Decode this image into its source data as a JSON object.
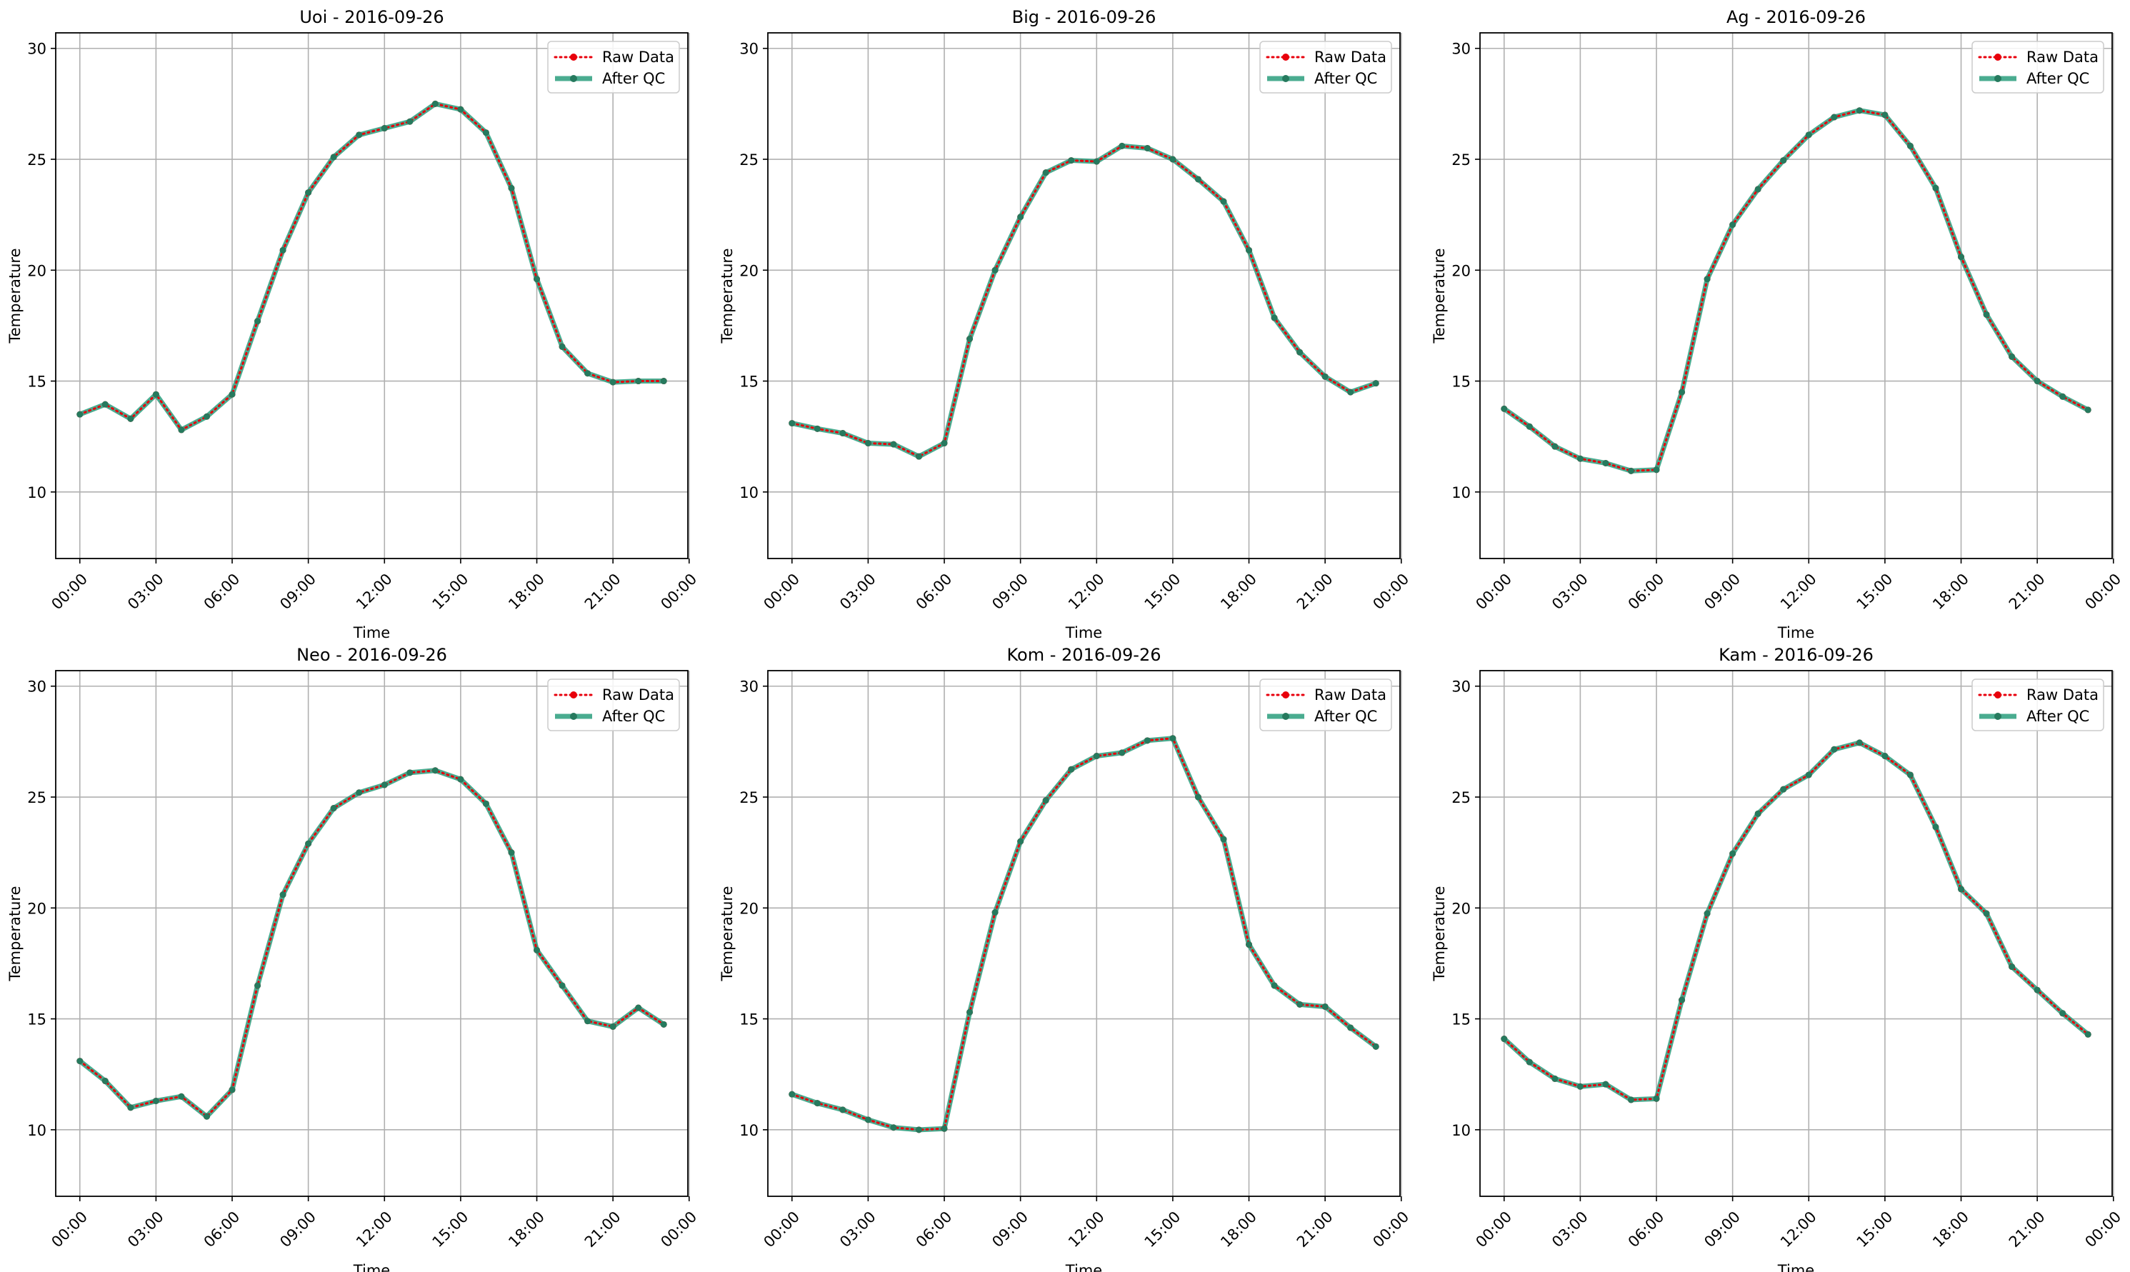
{
  "figure": {
    "background": "#ffffff"
  },
  "style": {
    "raw_color": "#e8000b",
    "qc_color": "#2a9d7c",
    "qc_marker_color": "#267a5e",
    "grid_color": "#b0b0b0"
  },
  "legend": {
    "raw_label": "Raw Data",
    "qc_label": "After QC",
    "placement": "top-right"
  },
  "chart_data": [
    {
      "type": "line",
      "title": "Uoi - 2016-09-26",
      "xlabel": "Time",
      "ylabel": "Temperature",
      "ylim": [
        7,
        30.7
      ],
      "yticks": [
        10,
        15,
        20,
        25,
        30
      ],
      "xlim": [
        "2016-09-25 23:03",
        "2016-09-26 23:57"
      ],
      "xtick_labels": [
        "00:00",
        "03:00",
        "06:00",
        "09:00",
        "12:00",
        "15:00",
        "18:00",
        "21:00",
        "00:00"
      ],
      "grid": true,
      "x": [
        "00:00",
        "01:00",
        "02:00",
        "03:00",
        "04:00",
        "05:00",
        "06:00",
        "07:00",
        "08:00",
        "09:00",
        "10:00",
        "11:00",
        "12:00",
        "13:00",
        "14:00",
        "15:00",
        "16:00",
        "17:00",
        "18:00",
        "19:00",
        "20:00",
        "21:00",
        "22:00",
        "23:00"
      ],
      "series": [
        {
          "name": "Raw Data",
          "values": [
            13.5,
            13.95,
            13.3,
            14.4,
            12.8,
            13.4,
            14.4,
            17.7,
            20.9,
            23.5,
            25.1,
            26.1,
            26.4,
            26.7,
            27.5,
            27.25,
            26.2,
            23.7,
            19.6,
            16.55,
            15.35,
            14.95,
            15.0,
            15.0
          ]
        },
        {
          "name": "After QC",
          "values": [
            13.5,
            13.95,
            13.3,
            14.4,
            12.8,
            13.4,
            14.4,
            17.7,
            20.9,
            23.5,
            25.1,
            26.1,
            26.4,
            26.7,
            27.5,
            27.25,
            26.2,
            23.7,
            19.6,
            16.55,
            15.35,
            14.95,
            15.0,
            15.0
          ]
        }
      ]
    },
    {
      "type": "line",
      "title": "Big - 2016-09-26",
      "xlabel": "Time",
      "ylabel": "Temperature",
      "ylim": [
        7,
        30.7
      ],
      "yticks": [
        10,
        15,
        20,
        25,
        30
      ],
      "xlim": [
        "2016-09-25 23:03",
        "2016-09-26 23:57"
      ],
      "xtick_labels": [
        "00:00",
        "03:00",
        "06:00",
        "09:00",
        "12:00",
        "15:00",
        "18:00",
        "21:00",
        "00:00"
      ],
      "grid": true,
      "x": [
        "00:00",
        "01:00",
        "02:00",
        "03:00",
        "04:00",
        "05:00",
        "06:00",
        "07:00",
        "08:00",
        "09:00",
        "10:00",
        "11:00",
        "12:00",
        "13:00",
        "14:00",
        "15:00",
        "16:00",
        "17:00",
        "18:00",
        "19:00",
        "20:00",
        "21:00",
        "22:00",
        "23:00"
      ],
      "series": [
        {
          "name": "Raw Data",
          "values": [
            13.1,
            12.85,
            12.65,
            12.2,
            12.15,
            11.6,
            12.2,
            16.9,
            20.0,
            22.4,
            24.4,
            24.95,
            24.9,
            25.6,
            25.5,
            25.0,
            24.1,
            23.1,
            20.9,
            17.85,
            16.3,
            15.2,
            14.5,
            14.9
          ]
        },
        {
          "name": "After QC",
          "values": [
            13.1,
            12.85,
            12.65,
            12.2,
            12.15,
            11.6,
            12.2,
            16.9,
            20.0,
            22.4,
            24.4,
            24.95,
            24.9,
            25.6,
            25.5,
            25.0,
            24.1,
            23.1,
            20.9,
            17.85,
            16.3,
            15.2,
            14.5,
            14.9
          ]
        }
      ]
    },
    {
      "type": "line",
      "title": "Ag - 2016-09-26",
      "xlabel": "Time",
      "ylabel": "Temperature",
      "ylim": [
        7,
        30.7
      ],
      "yticks": [
        10,
        15,
        20,
        25,
        30
      ],
      "xlim": [
        "2016-09-25 23:03",
        "2016-09-26 23:57"
      ],
      "xtick_labels": [
        "00:00",
        "03:00",
        "06:00",
        "09:00",
        "12:00",
        "15:00",
        "18:00",
        "21:00",
        "00:00"
      ],
      "grid": true,
      "x": [
        "00:00",
        "01:00",
        "02:00",
        "03:00",
        "04:00",
        "05:00",
        "06:00",
        "07:00",
        "08:00",
        "09:00",
        "10:00",
        "11:00",
        "12:00",
        "13:00",
        "14:00",
        "15:00",
        "16:00",
        "17:00",
        "18:00",
        "19:00",
        "20:00",
        "21:00",
        "22:00",
        "23:00"
      ],
      "series": [
        {
          "name": "Raw Data",
          "values": [
            13.75,
            12.95,
            12.05,
            11.5,
            11.3,
            10.95,
            11.0,
            14.5,
            19.6,
            22.05,
            23.65,
            24.95,
            26.1,
            26.9,
            27.2,
            27.0,
            25.6,
            23.7,
            20.6,
            18.0,
            16.1,
            15.0,
            14.3,
            13.7
          ]
        },
        {
          "name": "After QC",
          "values": [
            13.75,
            12.95,
            12.05,
            11.5,
            11.3,
            10.95,
            11.0,
            14.5,
            19.6,
            22.05,
            23.65,
            24.95,
            26.1,
            26.9,
            27.2,
            27.0,
            25.6,
            23.7,
            20.6,
            18.0,
            16.1,
            15.0,
            14.3,
            13.7
          ]
        }
      ]
    },
    {
      "type": "line",
      "title": "Neo - 2016-09-26",
      "xlabel": "Time",
      "ylabel": "Temperature",
      "ylim": [
        7,
        30.7
      ],
      "yticks": [
        10,
        15,
        20,
        25,
        30
      ],
      "xlim": [
        "2016-09-25 23:03",
        "2016-09-26 23:57"
      ],
      "xtick_labels": [
        "00:00",
        "03:00",
        "06:00",
        "09:00",
        "12:00",
        "15:00",
        "18:00",
        "21:00",
        "00:00"
      ],
      "grid": true,
      "x": [
        "00:00",
        "01:00",
        "02:00",
        "03:00",
        "04:00",
        "05:00",
        "06:00",
        "07:00",
        "08:00",
        "09:00",
        "10:00",
        "11:00",
        "12:00",
        "13:00",
        "14:00",
        "15:00",
        "16:00",
        "17:00",
        "18:00",
        "19:00",
        "20:00",
        "21:00",
        "22:00",
        "23:00"
      ],
      "series": [
        {
          "name": "Raw Data",
          "values": [
            13.1,
            12.2,
            11.0,
            11.3,
            11.5,
            10.6,
            11.8,
            16.5,
            20.6,
            22.9,
            24.5,
            25.2,
            25.55,
            26.1,
            26.2,
            25.8,
            24.7,
            22.5,
            18.1,
            16.5,
            14.9,
            14.65,
            15.5,
            14.75
          ]
        },
        {
          "name": "After QC",
          "values": [
            13.1,
            12.2,
            11.0,
            11.3,
            11.5,
            10.6,
            11.8,
            16.5,
            20.6,
            22.9,
            24.5,
            25.2,
            25.55,
            26.1,
            26.2,
            25.8,
            24.7,
            22.5,
            18.1,
            16.5,
            14.9,
            14.65,
            15.5,
            14.75
          ]
        }
      ]
    },
    {
      "type": "line",
      "title": "Kom - 2016-09-26",
      "xlabel": "Time",
      "ylabel": "Temperature",
      "ylim": [
        7,
        30.7
      ],
      "yticks": [
        10,
        15,
        20,
        25,
        30
      ],
      "xlim": [
        "2016-09-25 23:03",
        "2016-09-26 23:57"
      ],
      "xtick_labels": [
        "00:00",
        "03:00",
        "06:00",
        "09:00",
        "12:00",
        "15:00",
        "18:00",
        "21:00",
        "00:00"
      ],
      "grid": true,
      "x": [
        "00:00",
        "01:00",
        "02:00",
        "03:00",
        "04:00",
        "05:00",
        "06:00",
        "07:00",
        "08:00",
        "09:00",
        "10:00",
        "11:00",
        "12:00",
        "13:00",
        "14:00",
        "15:00",
        "16:00",
        "17:00",
        "18:00",
        "19:00",
        "20:00",
        "21:00",
        "22:00",
        "23:00"
      ],
      "series": [
        {
          "name": "Raw Data",
          "values": [
            11.6,
            11.2,
            10.9,
            10.45,
            10.1,
            10.0,
            10.05,
            15.3,
            19.8,
            23.0,
            24.85,
            26.25,
            26.85,
            27.0,
            27.55,
            27.65,
            25.0,
            23.1,
            18.35,
            16.5,
            15.65,
            15.55,
            14.6,
            13.75
          ]
        },
        {
          "name": "After QC",
          "values": [
            11.6,
            11.2,
            10.9,
            10.45,
            10.1,
            10.0,
            10.05,
            15.3,
            19.8,
            23.0,
            24.85,
            26.25,
            26.85,
            27.0,
            27.55,
            27.65,
            25.0,
            23.1,
            18.35,
            16.5,
            15.65,
            15.55,
            14.6,
            13.75
          ]
        }
      ]
    },
    {
      "type": "line",
      "title": "Kam - 2016-09-26",
      "xlabel": "Time",
      "ylabel": "Temperature",
      "ylim": [
        7,
        30.7
      ],
      "yticks": [
        10,
        15,
        20,
        25,
        30
      ],
      "xlim": [
        "2016-09-25 23:03",
        "2016-09-26 23:57"
      ],
      "xtick_labels": [
        "00:00",
        "03:00",
        "06:00",
        "09:00",
        "12:00",
        "15:00",
        "18:00",
        "21:00",
        "00:00"
      ],
      "grid": true,
      "x": [
        "00:00",
        "01:00",
        "02:00",
        "03:00",
        "04:00",
        "05:00",
        "06:00",
        "07:00",
        "08:00",
        "09:00",
        "10:00",
        "11:00",
        "12:00",
        "13:00",
        "14:00",
        "15:00",
        "16:00",
        "17:00",
        "18:00",
        "19:00",
        "20:00",
        "21:00",
        "22:00",
        "23:00"
      ],
      "series": [
        {
          "name": "Raw Data",
          "values": [
            14.1,
            13.05,
            12.3,
            11.95,
            12.05,
            11.35,
            11.4,
            15.85,
            19.75,
            22.45,
            24.25,
            25.35,
            26.0,
            27.15,
            27.45,
            26.85,
            26.0,
            23.65,
            20.85,
            19.75,
            17.35,
            16.3,
            15.25,
            14.3
          ]
        },
        {
          "name": "After QC",
          "values": [
            14.1,
            13.05,
            12.3,
            11.95,
            12.05,
            11.35,
            11.4,
            15.85,
            19.75,
            22.45,
            24.25,
            25.35,
            26.0,
            27.15,
            27.45,
            26.85,
            26.0,
            23.65,
            20.85,
            19.75,
            17.35,
            16.3,
            15.25,
            14.3
          ]
        }
      ]
    }
  ]
}
